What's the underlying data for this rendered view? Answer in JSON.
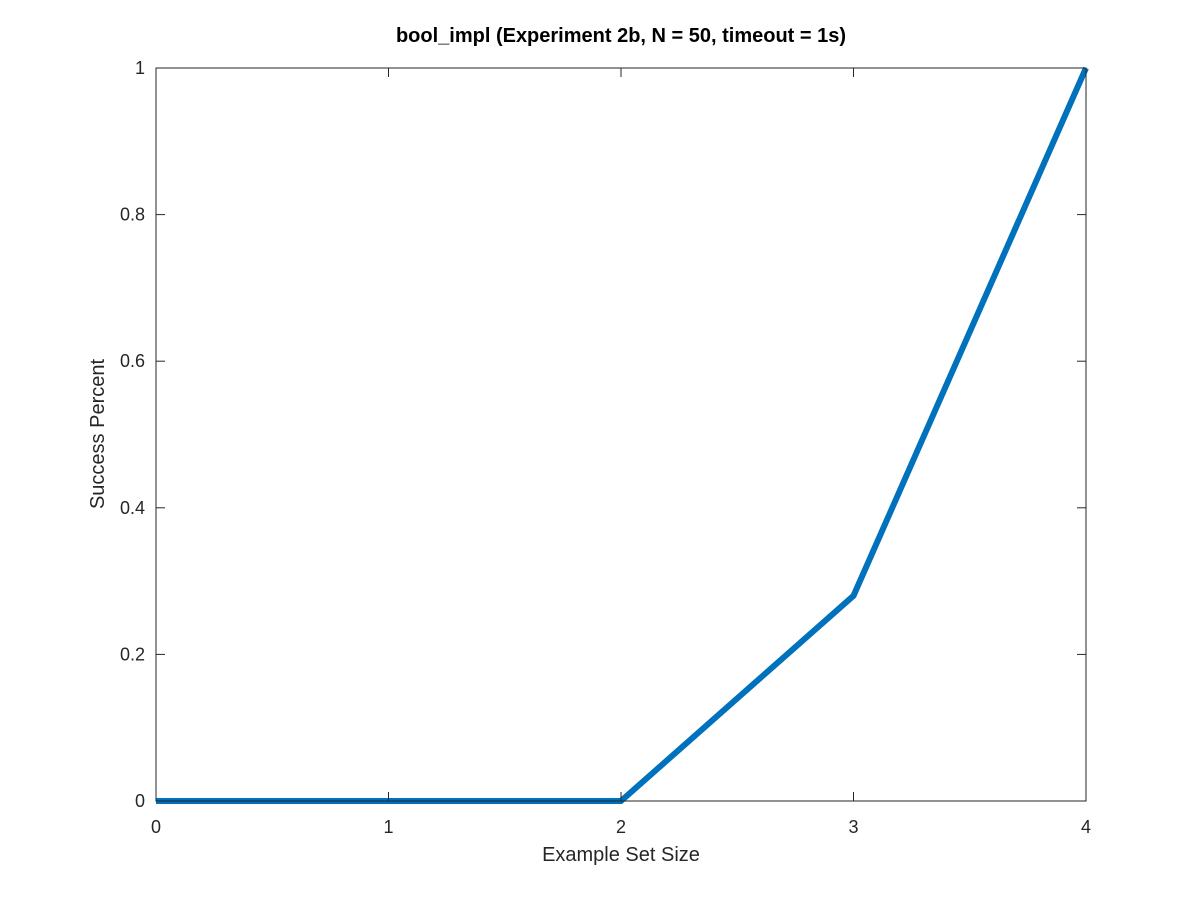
{
  "chart_data": {
    "type": "line",
    "title": "bool_impl (Experiment 2b, N = 50, timeout = 1s)",
    "xlabel": "Example Set Size",
    "ylabel": "Success Percent",
    "xlim": [
      0,
      4
    ],
    "ylim": [
      0,
      1
    ],
    "xticks": [
      0,
      1,
      2,
      3,
      4
    ],
    "xtick_labels": [
      "0",
      "1",
      "2",
      "3",
      "4"
    ],
    "yticks": [
      0,
      0.2,
      0.4,
      0.6,
      0.8,
      1
    ],
    "ytick_labels": [
      "0",
      "0.2",
      "0.4",
      "0.6",
      "0.8",
      "1"
    ],
    "grid": false,
    "box": true,
    "series": [
      {
        "x": [
          0,
          1,
          2,
          3,
          4
        ],
        "y": [
          0,
          0,
          0,
          0.28,
          1
        ],
        "color": "#0072BD"
      }
    ]
  }
}
